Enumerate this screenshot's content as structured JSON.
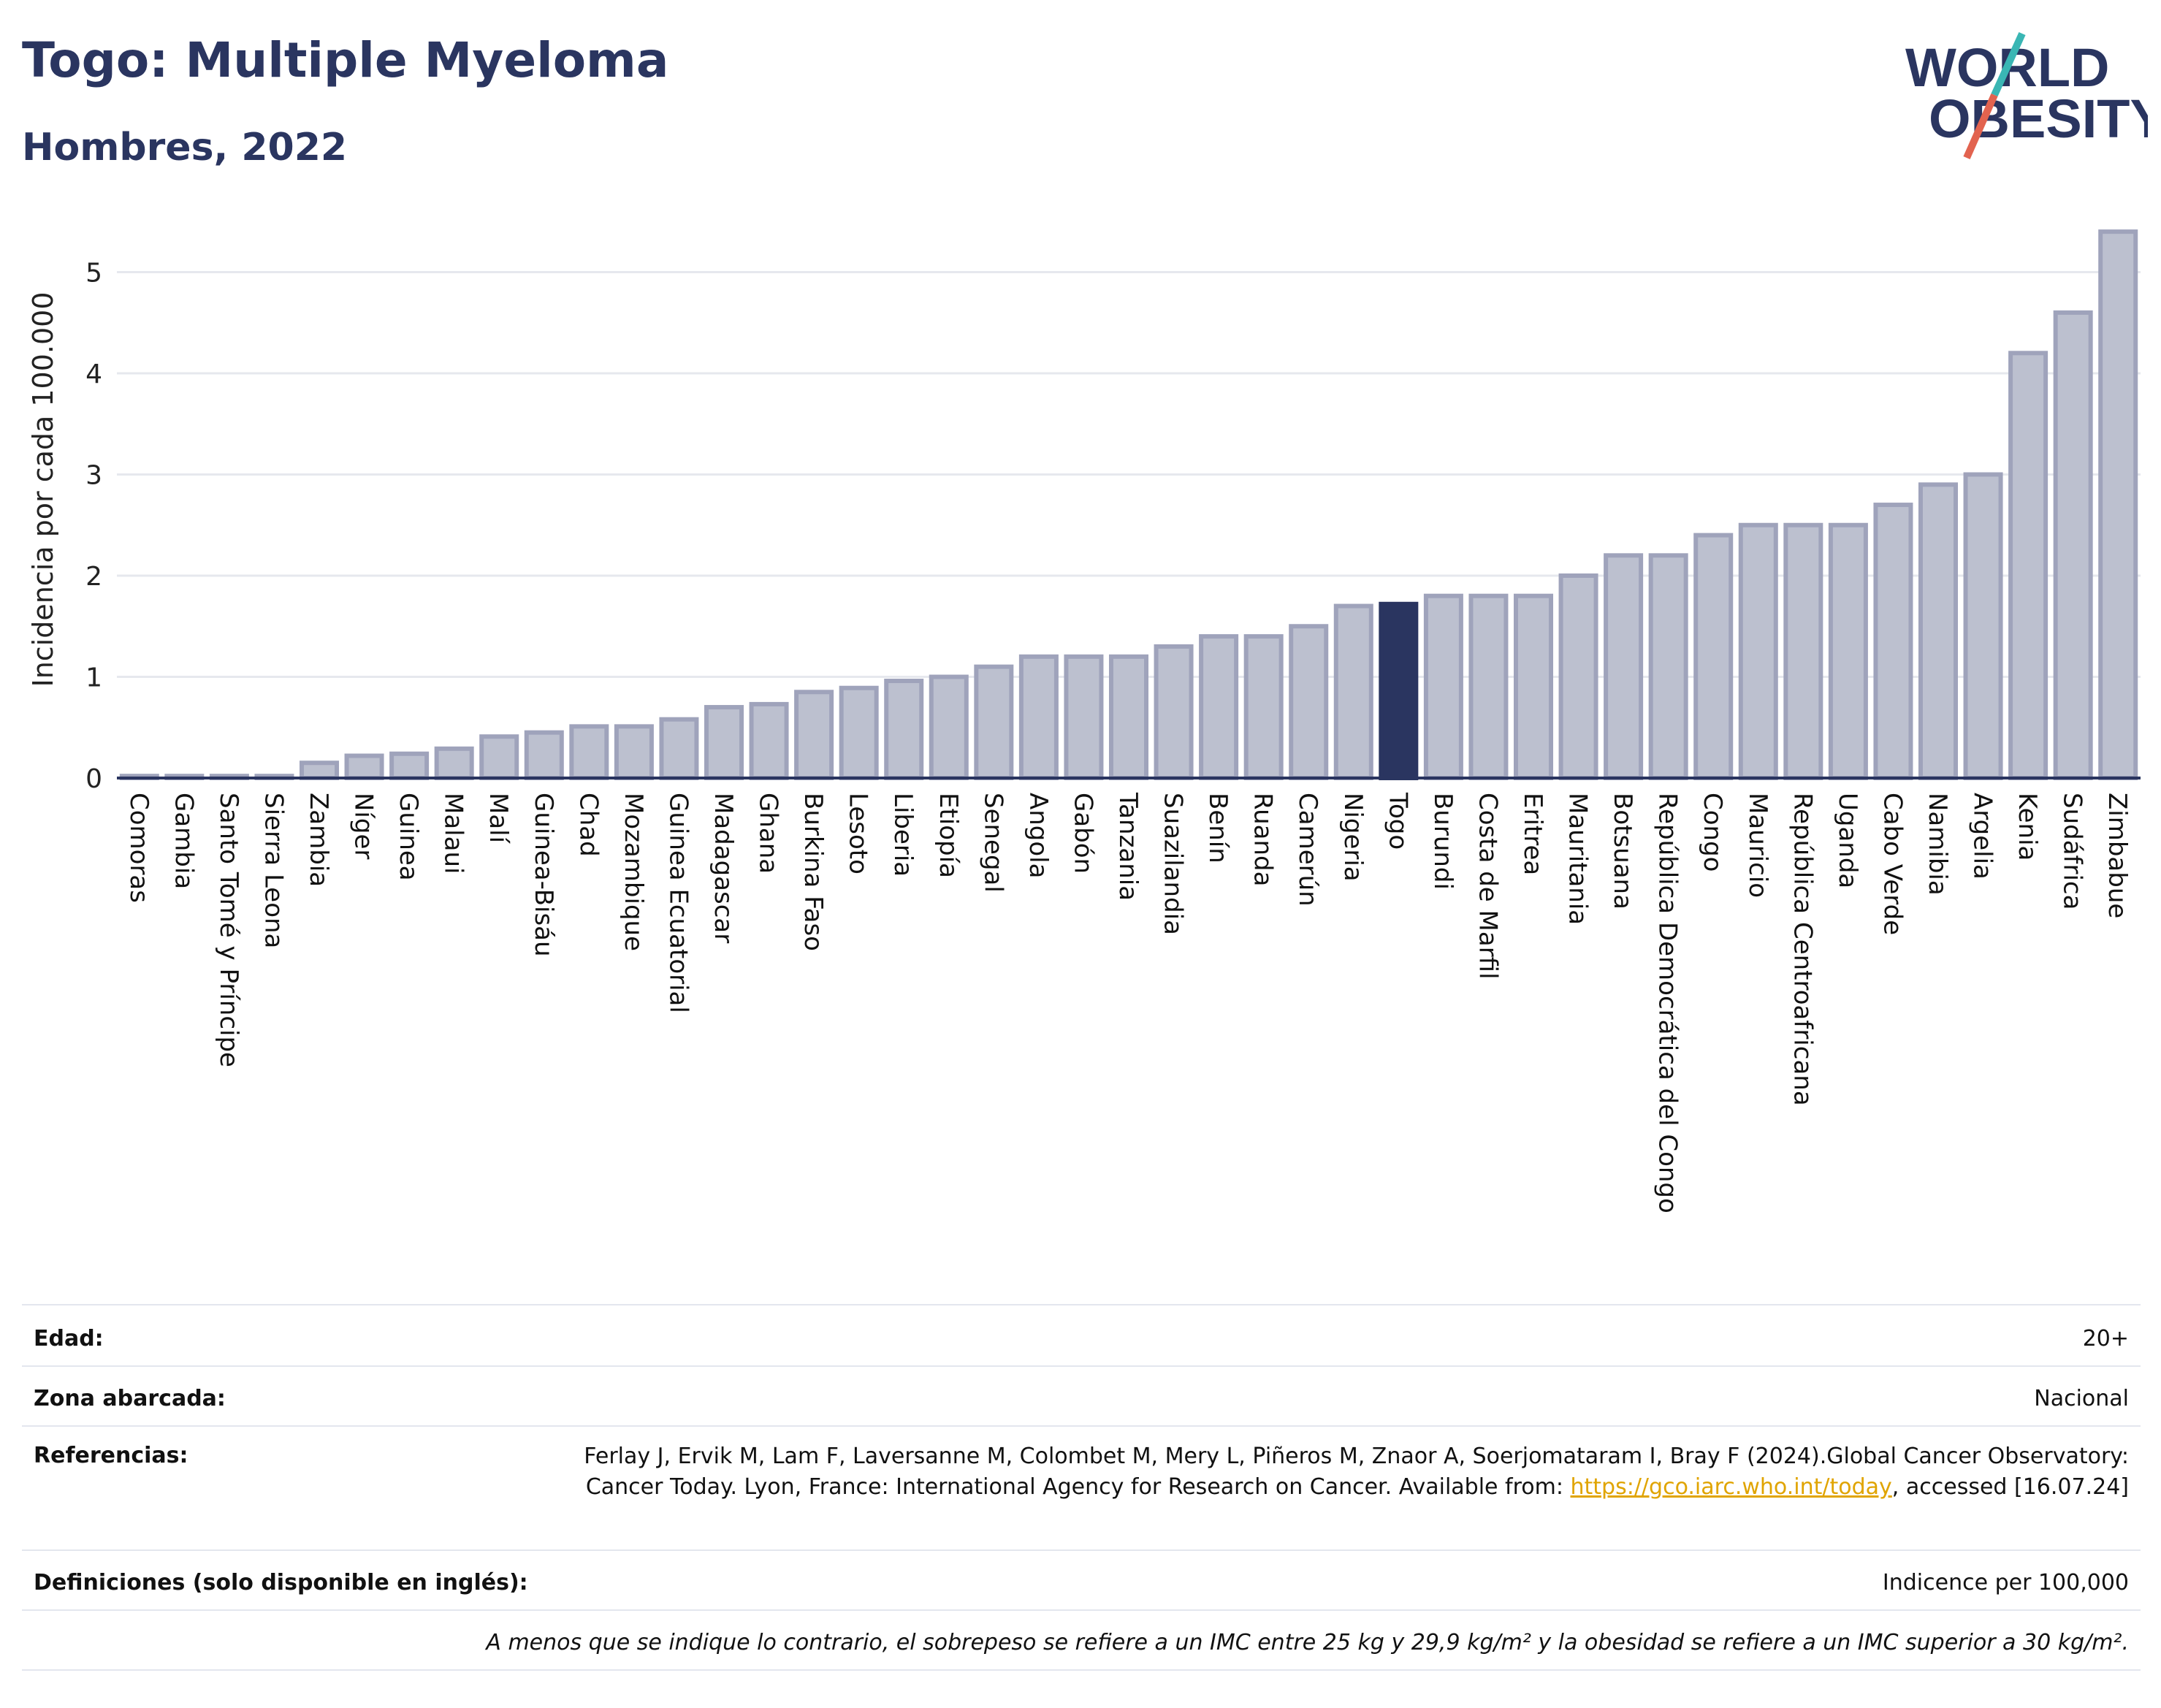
{
  "header": {
    "title": "Togo: Multiple Myeloma",
    "subtitle": "Hombres, 2022",
    "logo_text_top": "WORLD",
    "logo_text_bottom": "OBESITY"
  },
  "colors": {
    "highlight": "#2a3560",
    "bar_fill": "#bcc0cf",
    "bar_stroke": "#9fa3bb",
    "grid": "#e6e8ee",
    "logo_teal": "#3ab6b4",
    "logo_red": "#e2634f"
  },
  "chart_data": {
    "type": "bar",
    "ylabel": "Incidencia por cada 100.000",
    "ylim": [
      0,
      5.55
    ],
    "yticks": [
      0,
      1,
      2,
      3,
      4,
      5
    ],
    "highlight": "Togo",
    "grid": true,
    "categories": [
      "Comoras",
      "Gambia",
      "Santo Tomé y Príncipe",
      "Sierra Leona",
      "Zambia",
      "Níger",
      "Guinea",
      "Malaui",
      "Malí",
      "Guinea-Bisáu",
      "Chad",
      "Mozambique",
      "Guinea Ecuatorial",
      "Madagascar",
      "Ghana",
      "Burkina Faso",
      "Lesoto",
      "Liberia",
      "Etiopía",
      "Senegal",
      "Angola",
      "Gabón",
      "Tanzania",
      "Suazilandia",
      "Benín",
      "Ruanda",
      "Camerún",
      "Nigeria",
      "Togo",
      "Burundi",
      "Costa de Marfil",
      "Eritrea",
      "Mauritania",
      "Botsuana",
      "República Democrática del Congo",
      "Congo",
      "Mauricio",
      "República Centroafricana",
      "Uganda",
      "Cabo Verde",
      "Namibia",
      "Argelia",
      "Kenia",
      "Sudáfrica",
      "Zimbabue"
    ],
    "values": [
      0.02,
      0.02,
      0.02,
      0.02,
      0.15,
      0.22,
      0.24,
      0.29,
      0.41,
      0.45,
      0.51,
      0.51,
      0.58,
      0.7,
      0.73,
      0.85,
      0.89,
      0.96,
      1.0,
      1.1,
      1.2,
      1.2,
      1.2,
      1.3,
      1.4,
      1.4,
      1.5,
      1.7,
      1.72,
      1.8,
      1.8,
      1.8,
      2.0,
      2.2,
      2.2,
      2.4,
      2.5,
      2.5,
      2.5,
      2.7,
      2.9,
      3.0,
      4.2,
      4.6,
      5.4
    ]
  },
  "info": {
    "age_label": "Edad:",
    "age_value": "20+",
    "zone_label": "Zona abarcada:",
    "zone_value": "Nacional",
    "refs_label": "Referencias:",
    "refs_text_1": "Ferlay J, Ervik M, Lam F, Laversanne M, Colombet M, Mery L, Piñeros M, Znaor A, Soerjomataram I, Bray F (2024).Global Cancer Observatory: Cancer Today. Lyon, France: International Agency for Research on Cancer. Available from: ",
    "refs_link": "https://gco.iarc.who.int/today",
    "refs_text_2": ", accessed [16.07.24]",
    "defs_label": "Definiciones (solo disponible en inglés):",
    "defs_value": "Indicence per 100,000",
    "note": "A menos que se indique lo contrario, el sobrepeso se refiere a un IMC entre 25 kg y 29,9 kg/m² y la obesidad se refiere a un IMC superior a 30 kg/m²."
  }
}
